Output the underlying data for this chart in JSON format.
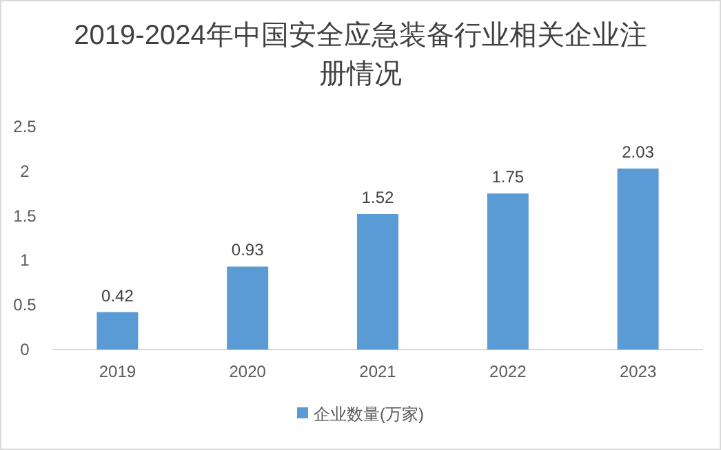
{
  "chart_data": {
    "type": "bar",
    "title": "2019-2024年中国安全应急装备行业相关企业注册情况",
    "categories": [
      "2019",
      "2020",
      "2021",
      "2022",
      "2023"
    ],
    "series": [
      {
        "name": "企业数量(万家)",
        "color": "#5b9bd5",
        "values": [
          0.42,
          0.93,
          1.52,
          1.75,
          2.03
        ]
      }
    ],
    "ylim": [
      0,
      2.5
    ],
    "yticks": [
      0,
      0.5,
      1,
      1.5,
      2,
      2.5
    ],
    "grid": false,
    "legend": "bottom",
    "data_labels": true
  }
}
